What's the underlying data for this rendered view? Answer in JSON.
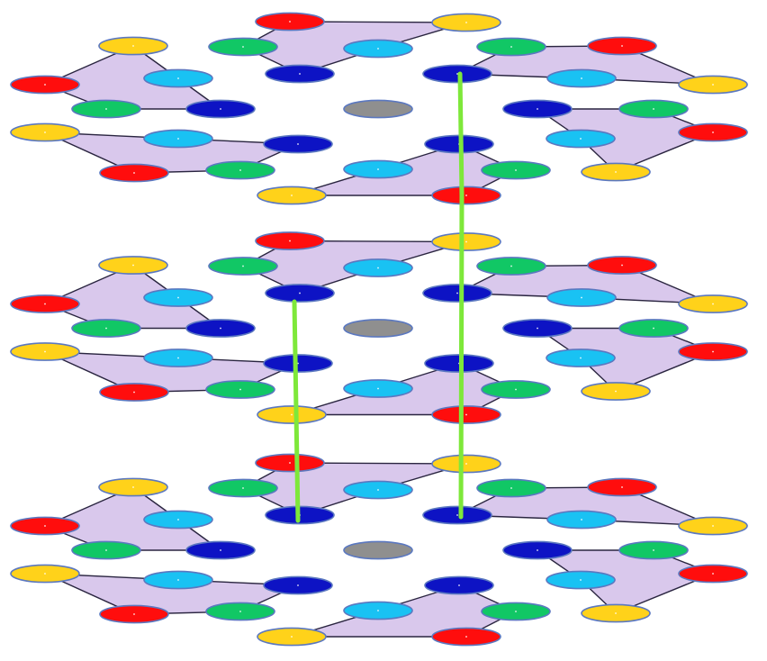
{
  "palette": {
    "ring_fill": "#d9c8ec",
    "ring_edge": "#2a2540",
    "atom_outline": "#5b78c0",
    "red": "#ff0d0d",
    "yellow": "#ffd21a",
    "green": "#11c765",
    "cyan": "#19c2f3",
    "navy": "#0d13c4",
    "gray": "#8f8f8f",
    "link": "#7ee83a"
  },
  "structure": {
    "layers": 3,
    "hexagonal_rings_per_layer": 6,
    "atoms_per_ring": 5,
    "ring_atom_colors": [
      "red",
      "yellow",
      "green",
      "cyan",
      "navy"
    ],
    "center_atom_color": "gray",
    "interlayer_links": 3
  }
}
